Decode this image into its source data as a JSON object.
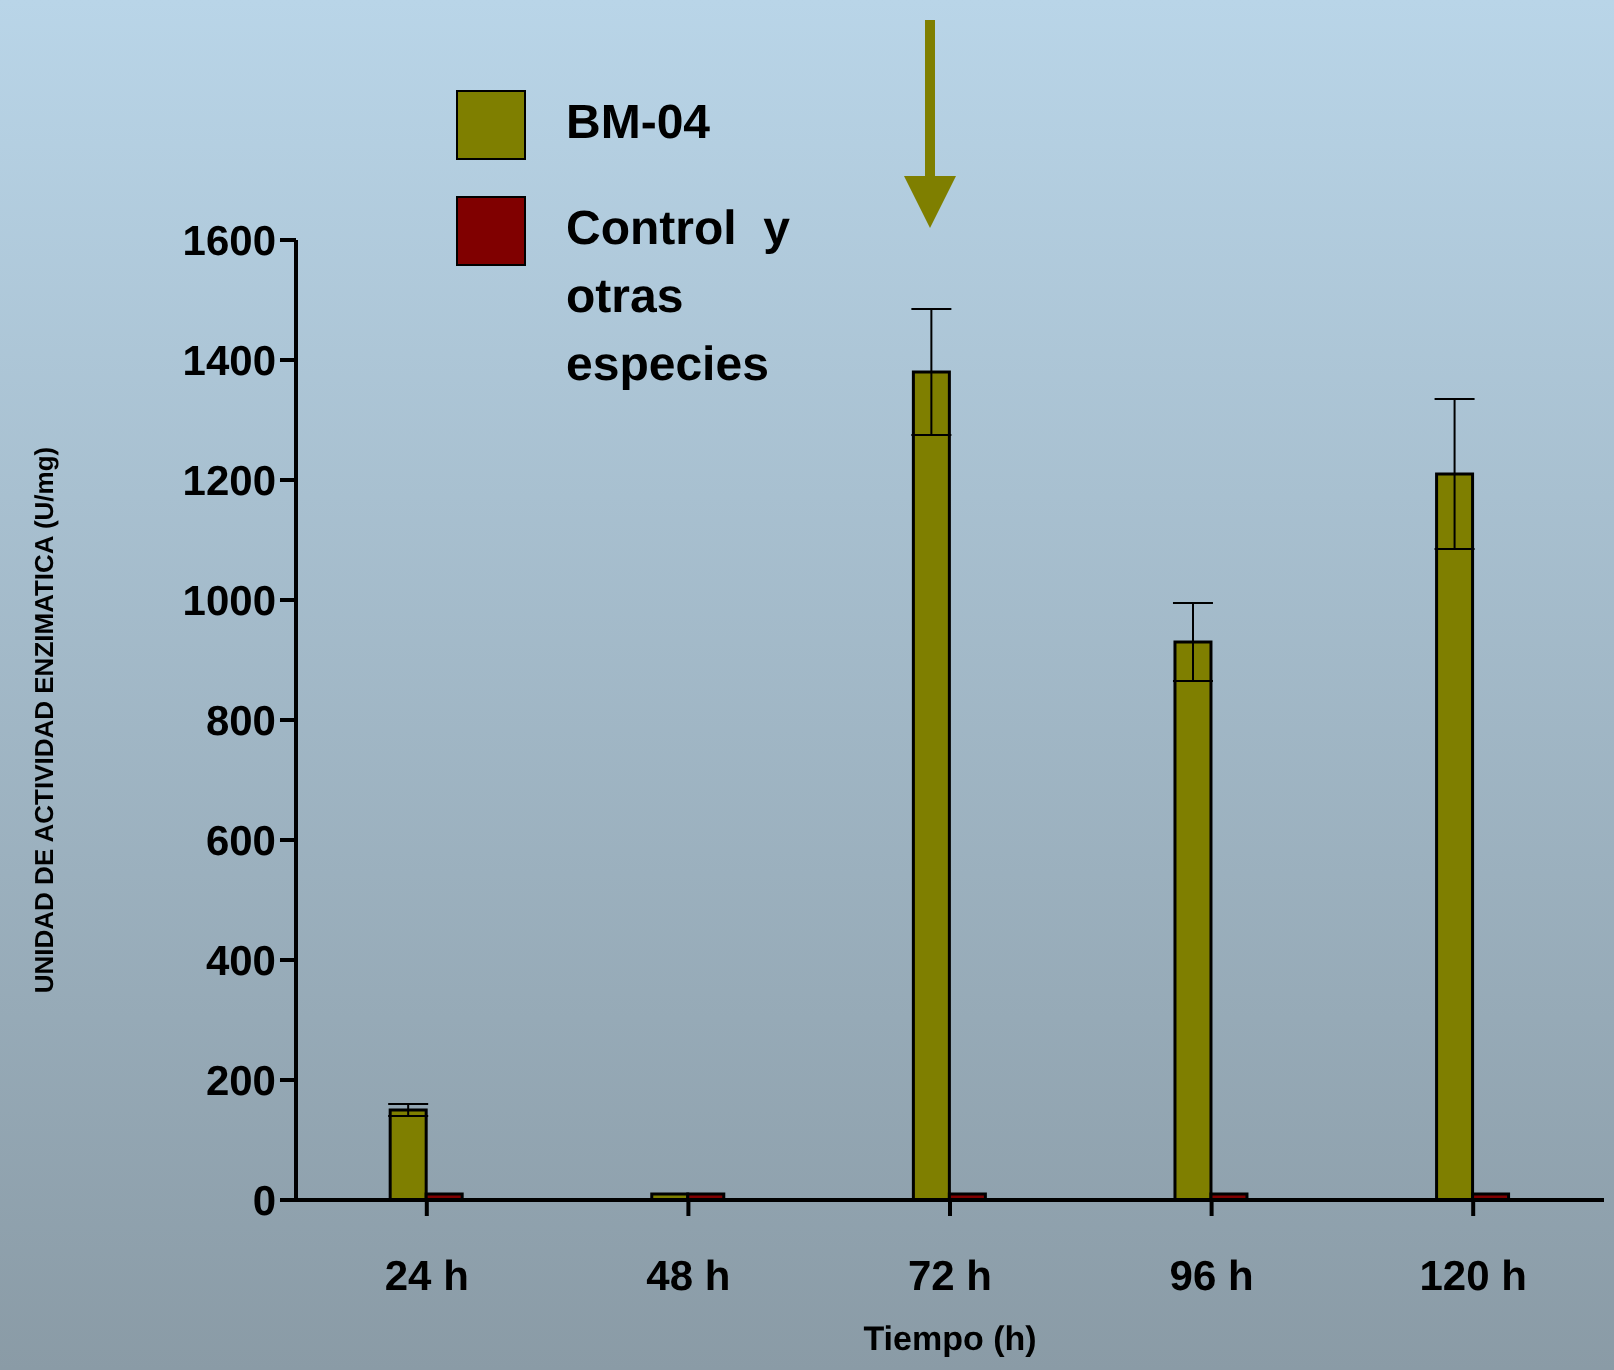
{
  "chart_data": {
    "type": "bar",
    "xlabel": "Tiempo (h)",
    "ylabel": "UNIDAD DE ACTIVIDAD ENZIMATICA (U/mg)",
    "categories": [
      "24 h",
      "48 h",
      "72 h",
      "96 h",
      "120 h"
    ],
    "series": [
      {
        "name": "BM-04",
        "color": "#7f7f00",
        "values": [
          150,
          10,
          1380,
          930,
          1210
        ],
        "errors": [
          10,
          null,
          105,
          65,
          125
        ]
      },
      {
        "name": "Control  y otras especies",
        "color": "#800000",
        "values": [
          10,
          10,
          10,
          10,
          10
        ]
      }
    ],
    "ylim": [
      0,
      1600
    ],
    "yticks": [
      0,
      200,
      400,
      600,
      800,
      1000,
      1200,
      1400,
      1600
    ],
    "grid": false,
    "legend": "top left"
  }
}
